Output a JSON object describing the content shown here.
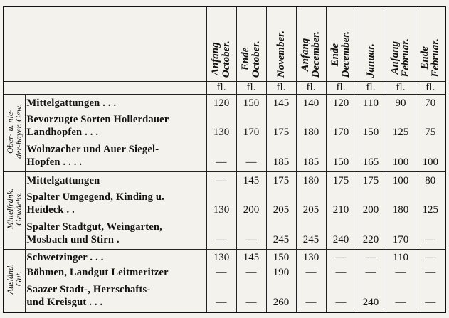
{
  "table": {
    "columns": [
      [
        "Anfang",
        "October."
      ],
      [
        "Ende",
        "October."
      ],
      [
        "November."
      ],
      [
        "Anfang",
        "December."
      ],
      [
        "Ende",
        "December."
      ],
      [
        "Januar."
      ],
      [
        "Anfang",
        "Februar."
      ],
      [
        "Ende",
        "Februar."
      ]
    ],
    "unit": "fl.",
    "groups": [
      {
        "label": [
          "Ober- u. nie-",
          "der-bayer. Gew."
        ],
        "rows": [
          {
            "label": [
              "Mittelgattungen . . ."
            ],
            "values": [
              "120",
              "150",
              "145",
              "140",
              "120",
              "110",
              "90",
              "70"
            ]
          },
          {
            "label": [
              "Bevorzugte Sorten Hollerdauer",
              "Landhopfen . . ."
            ],
            "values": [
              "130",
              "170",
              "175",
              "180",
              "170",
              "150",
              "125",
              "75"
            ]
          },
          {
            "label": [
              "Wolnzacher und Auer Siegel-",
              "Hopfen . . . ."
            ],
            "values": [
              "—",
              "—",
              "185",
              "185",
              "150",
              "165",
              "100",
              "100"
            ]
          }
        ]
      },
      {
        "label": [
          "Mittelfränk.",
          "Gewächs."
        ],
        "rows": [
          {
            "label": [
              "Mittelgattungen"
            ],
            "values": [
              "—",
              "145",
              "175",
              "180",
              "175",
              "175",
              "100",
              "80"
            ]
          },
          {
            "label": [
              "Spalter Umgegend, Kinding u.",
              "Heideck . ."
            ],
            "values": [
              "130",
              "200",
              "205",
              "205",
              "210",
              "200",
              "180",
              "125"
            ]
          },
          {
            "label": [
              "Spalter Stadtgut, Weingarten,",
              "Mosbach und Stirn ."
            ],
            "values": [
              "—",
              "—",
              "245",
              "245",
              "240",
              "220",
              "170",
              "—"
            ]
          }
        ]
      },
      {
        "label": [
          "Ausländ.",
          "Gut."
        ],
        "rows": [
          {
            "label": [
              "Schwetzinger . . ."
            ],
            "values": [
              "130",
              "145",
              "150",
              "130",
              "—",
              "—",
              "110",
              "—"
            ]
          },
          {
            "label": [
              "Böhmen, Landgut Leitmeritzer"
            ],
            "values": [
              "—",
              "—",
              "190",
              "—",
              "—",
              "—",
              "—",
              "—"
            ]
          },
          {
            "label": [
              "Saazer Stadt-, Herrschafts-",
              "und Kreisgut . . ."
            ],
            "values": [
              "—",
              "—",
              "260",
              "—",
              "—",
              "240",
              "—",
              "—"
            ]
          }
        ]
      }
    ]
  }
}
